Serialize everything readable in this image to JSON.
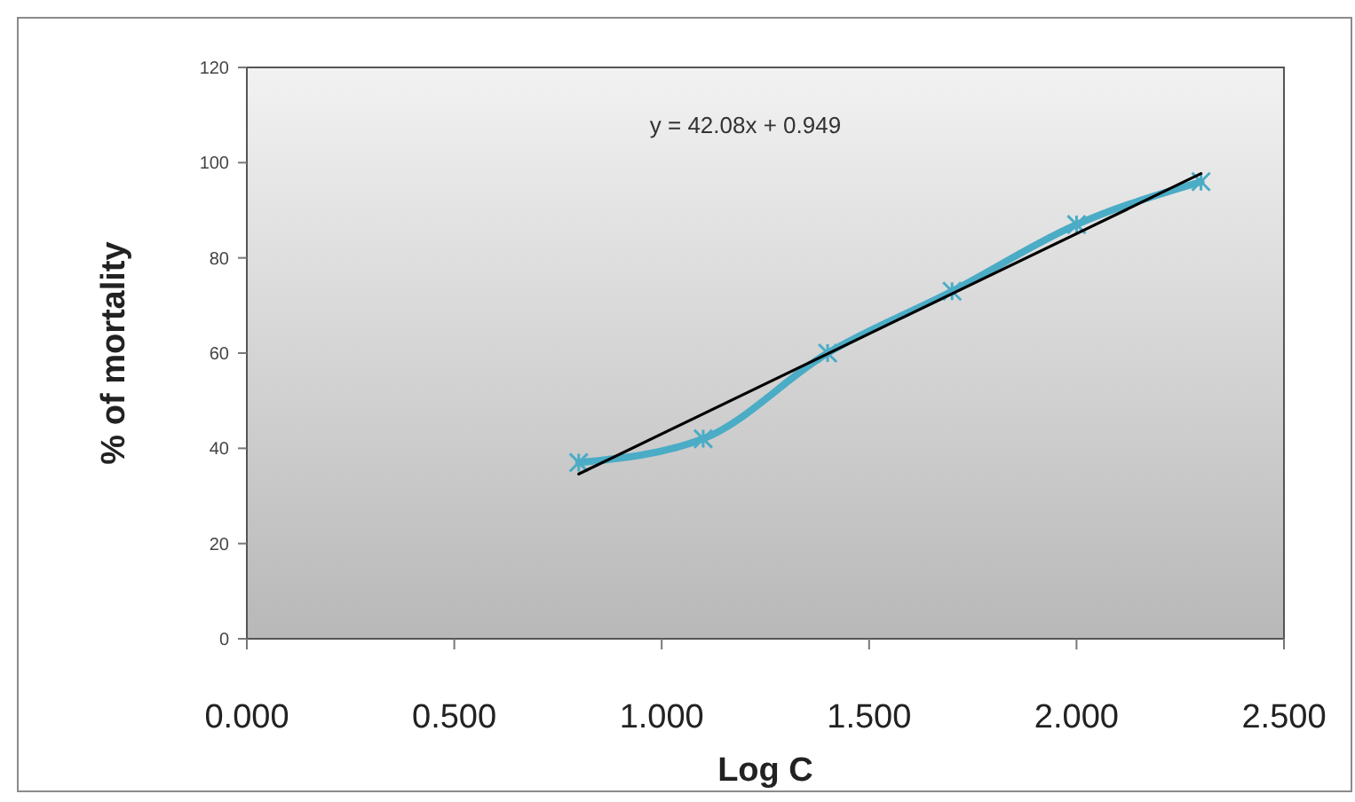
{
  "chart_data": {
    "type": "line",
    "xlabel": "Log C",
    "ylabel": "% of mortality",
    "xlim": [
      0,
      2.5
    ],
    "xticks": [
      {
        "value": 0,
        "label": "0.000"
      },
      {
        "value": 0.5,
        "label": "0.500"
      },
      {
        "value": 1,
        "label": "1.000"
      },
      {
        "value": 1.5,
        "label": "1.500"
      },
      {
        "value": 2,
        "label": "2.000"
      },
      {
        "value": 2.5,
        "label": "2.500"
      }
    ],
    "ylim": [
      0,
      120
    ],
    "yticks": [
      0,
      20,
      40,
      60,
      80,
      100,
      120
    ],
    "grid": false,
    "annotations": [
      "y = 42.08x + 0.949"
    ],
    "series": [
      {
        "color": "#4bacc6",
        "marker": "cross",
        "x": [
          0.8,
          1.1,
          1.4,
          1.7,
          2.0,
          2.3
        ],
        "values": [
          37,
          42,
          60,
          73,
          87,
          96
        ]
      },
      {
        "type": "line",
        "marker": "none",
        "color": "#000000",
        "x": [
          0.8,
          2.3
        ],
        "values": [
          34.6,
          97.7
        ]
      }
    ]
  }
}
